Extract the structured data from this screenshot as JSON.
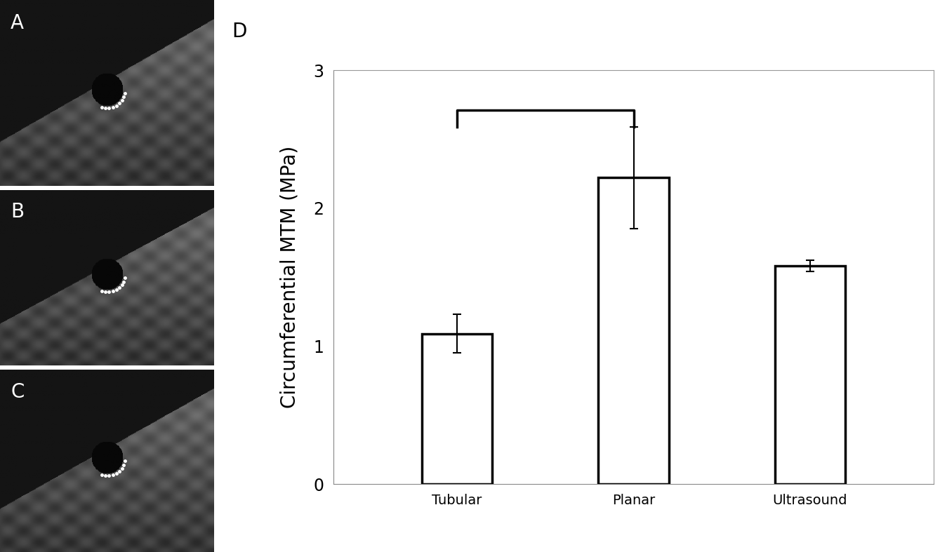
{
  "panels": [
    "A",
    "B",
    "C"
  ],
  "chart_data": {
    "type": "bar",
    "panel_label": "D",
    "y_label": "Circumferential MTM (MPa)",
    "categories": [
      "Tubular",
      "Planar",
      "Ultrasound"
    ],
    "values": [
      1.09,
      2.22,
      1.58
    ],
    "errors": [
      0.14,
      0.37,
      0.04
    ],
    "color": "#ffffff",
    "ylim": [
      0,
      3
    ],
    "yticks": [
      0,
      1,
      2,
      3
    ],
    "significance_pairs": [
      [
        "Tubular",
        "Planar"
      ]
    ]
  }
}
